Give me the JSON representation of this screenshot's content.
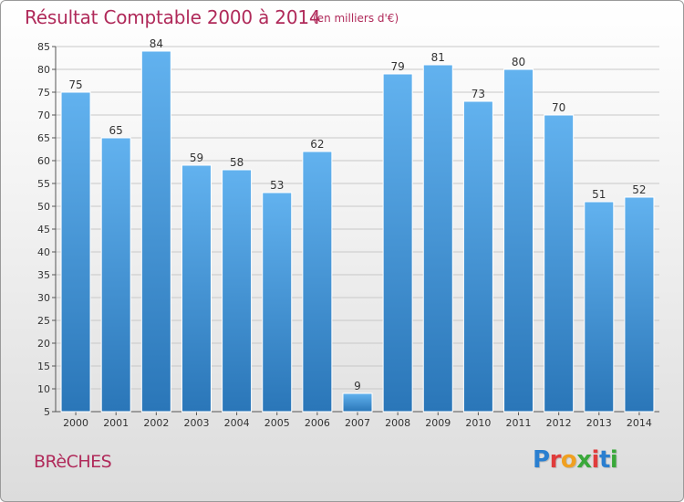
{
  "header": {
    "title": "Résultat Comptable 2000 à 2014",
    "subtitle": "(en milliers d'€)"
  },
  "footer": {
    "place": "BRèCHES",
    "logo": "Proxiti",
    "logo_colors": [
      "#2a7fd0",
      "#e03c3c",
      "#f0a020",
      "#3aa83a",
      "#e03c3c",
      "#2a7fd0",
      "#3aa83a"
    ]
  },
  "colors": {
    "bar_top": "#62b2ef",
    "bar_bottom": "#2a76b8",
    "bar_edge": "#ffffff",
    "grid": "#c8c8c8",
    "accent": "#b02a5a"
  },
  "chart_data": {
    "type": "bar",
    "categories": [
      "2000",
      "2001",
      "2002",
      "2003",
      "2004",
      "2005",
      "2006",
      "2007",
      "2008",
      "2009",
      "2010",
      "2011",
      "2012",
      "2013",
      "2014"
    ],
    "values": [
      75,
      65,
      84,
      59,
      58,
      53,
      62,
      9,
      79,
      81,
      73,
      80,
      70,
      51,
      52
    ],
    "ylim": [
      5,
      85
    ],
    "yticks": [
      5,
      10,
      15,
      20,
      25,
      30,
      35,
      40,
      45,
      50,
      55,
      60,
      65,
      70,
      75,
      80,
      85
    ],
    "grid": true,
    "data_labels": true
  }
}
